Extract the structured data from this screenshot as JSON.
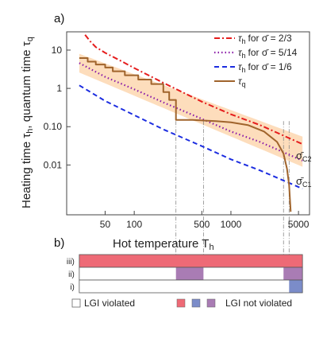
{
  "chart_data": [
    {
      "panel_label": "a)",
      "type": "line",
      "xscale": "log",
      "yscale": "log",
      "xlim": [
        20,
        6500
      ],
      "ylim": [
        0.0005,
        30
      ],
      "xlabel": "Hot temperature T",
      "xlabel_sub": "h",
      "ylabel": "Heating time τ",
      "ylabel_sub": "h",
      "ylabel_rest": ", quantum time τ",
      "ylabel_sub2": "q",
      "x_ticks": [
        50,
        100,
        500,
        1000,
        5000
      ],
      "x_tick_labels": [
        "50",
        "100",
        "500",
        "1000",
        "5000"
      ],
      "y_ticks": [
        0.01,
        0.1,
        1,
        10
      ],
      "y_tick_labels": [
        "0.01",
        "0.10",
        "1",
        "10"
      ],
      "annotations": [
        {
          "text": "σ̄",
          "sub": "C2",
          "x": 4400,
          "y": 0.026
        },
        {
          "text": "σ̄",
          "sub": "C1",
          "x": 4400,
          "y": 0.0045
        }
      ],
      "vertical_guides": [
        270,
        520,
        3500,
        4000
      ],
      "band": {
        "x": [
          27,
          5500
        ],
        "upper": [
          8.0,
          0.055
        ],
        "lower": [
          2.6,
          0.009
        ],
        "color": "#fdd7b0"
      },
      "series": [
        {
          "name": "for σ̄ = 2/3",
          "legend_symbol": "τ",
          "legend_sub": "h",
          "style": "dashdot",
          "color": "#e51d1d",
          "x": [
            31,
            35,
            40,
            50,
            70,
            100,
            200,
            500,
            1000,
            2000,
            5500
          ],
          "y": [
            25.0,
            17.0,
            12.0,
            8.5,
            5.5,
            3.4,
            1.4,
            0.45,
            0.21,
            0.11,
            0.035
          ]
        },
        {
          "name": "for σ̄ = 5/14",
          "legend_symbol": "τ",
          "legend_sub": "h",
          "style": "dotted",
          "color": "#8b1ca8",
          "x": [
            27,
            50,
            100,
            200,
            500,
            1000,
            2000,
            5500
          ],
          "y": [
            4.6,
            2.0,
            0.95,
            0.43,
            0.16,
            0.075,
            0.04,
            0.013
          ]
        },
        {
          "name": "for σ̄ = 1/6",
          "legend_symbol": "τ",
          "legend_sub": "h",
          "style": "dashed",
          "color": "#1c2de0",
          "x": [
            27,
            50,
            100,
            200,
            500,
            1000,
            2000,
            5500
          ],
          "y": [
            1.2,
            0.47,
            0.2,
            0.085,
            0.031,
            0.014,
            0.0072,
            0.0024
          ]
        },
        {
          "name": "",
          "legend_symbol": "τ",
          "legend_sub": "q",
          "style": "solid",
          "color": "#a0642c",
          "x": [
            27,
            33,
            33,
            40,
            40,
            50,
            50,
            60,
            60,
            80,
            80,
            110,
            110,
            150,
            150,
            200,
            200,
            230,
            230,
            270,
            270,
            400,
            700,
            1000,
            1500,
            2200,
            3000,
            3500,
            3800,
            4000,
            4150
          ],
          "y": [
            6.2,
            6.2,
            5.0,
            5.0,
            4.2,
            4.2,
            3.5,
            3.5,
            2.8,
            2.8,
            2.2,
            2.2,
            1.7,
            1.7,
            1.3,
            1.3,
            0.8,
            0.8,
            0.5,
            0.5,
            0.15,
            0.15,
            0.14,
            0.13,
            0.11,
            0.075,
            0.04,
            0.02,
            0.008,
            0.003,
            0.0006
          ]
        }
      ]
    },
    {
      "panel_label": "b)",
      "type": "table",
      "x_start": 27,
      "x_end": 5500,
      "rows": [
        {
          "label": "iii)",
          "segments": [
            {
              "from": 27,
              "to": 5500,
              "color": "#ee6a76"
            }
          ]
        },
        {
          "label": "ii)",
          "segments": [
            {
              "from": 270,
              "to": 520,
              "color": "#a97cb4"
            },
            {
              "from": 3500,
              "to": 5500,
              "color": "#a97cb4"
            }
          ]
        },
        {
          "label": "i)",
          "segments": [
            {
              "from": 4000,
              "to": 5500,
              "color": "#7b8cc9"
            }
          ]
        }
      ],
      "legend": {
        "violated_label": "LGI violated",
        "not_violated_label": "LGI not violated",
        "violated_color": "#ffffff",
        "not_violated_colors": [
          "#ee6a76",
          "#7b8cc9",
          "#a97cb4"
        ]
      }
    }
  ]
}
